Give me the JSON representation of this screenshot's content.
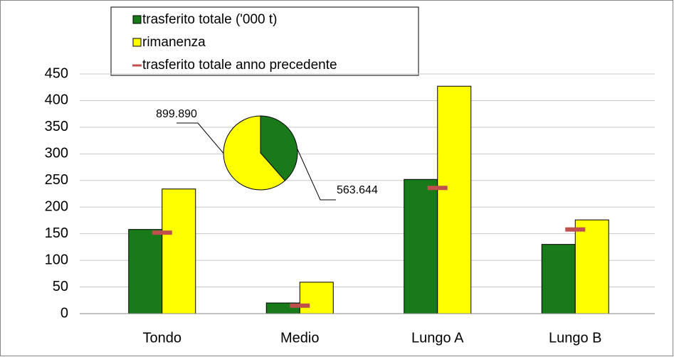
{
  "chart_data": [
    {
      "type": "bar",
      "categories": [
        "Tondo",
        "Medio",
        "Lungo A",
        "Lungo B"
      ],
      "series": [
        {
          "name": "trasferito totale ('000 t)",
          "kind": "bar",
          "color": "#187a18",
          "values": [
            158,
            20,
            252,
            130
          ]
        },
        {
          "name": "rimanenza",
          "kind": "bar",
          "color": "#ffff00",
          "values": [
            234,
            59,
            427,
            176
          ]
        },
        {
          "name": "trasferito totale anno precedente",
          "kind": "marker",
          "color": "#c0504d",
          "values": [
            152,
            15,
            236,
            158
          ]
        }
      ],
      "ylim": [
        0,
        450
      ],
      "yticks": [
        0,
        50,
        100,
        150,
        200,
        250,
        300,
        350,
        400,
        450
      ],
      "grid": true
    },
    {
      "type": "pie",
      "values": [
        563644,
        899890
      ],
      "value_labels": [
        "563.644",
        "899.890"
      ],
      "colors": [
        "#187a18",
        "#ffff00"
      ]
    }
  ]
}
